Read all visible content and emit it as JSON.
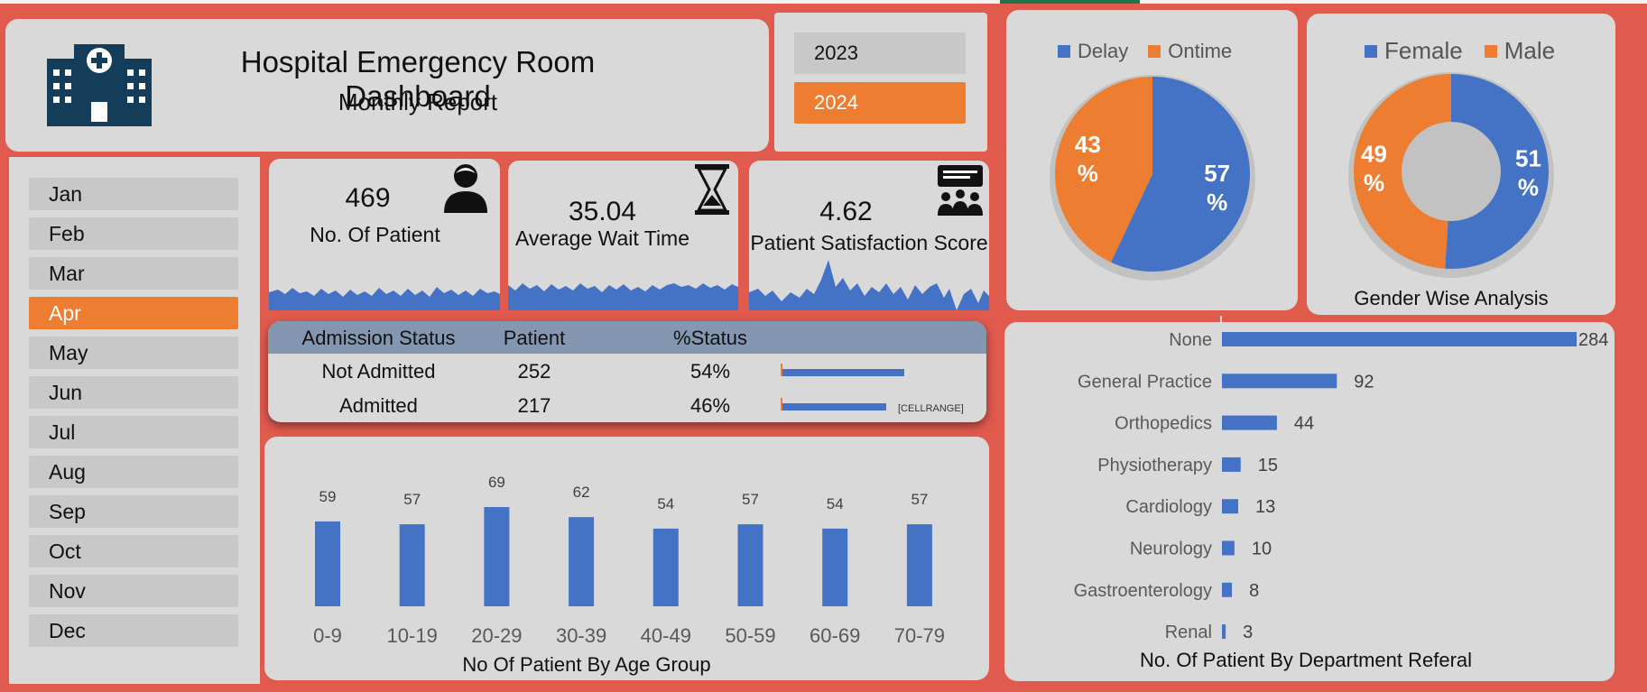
{
  "header": {
    "title": "Hospital Emergency Room Dashboard",
    "subtitle": "Monthly Report"
  },
  "years": [
    {
      "label": "2023",
      "selected": false
    },
    {
      "label": "2024",
      "selected": true
    }
  ],
  "months": [
    {
      "label": "Jan",
      "selected": false
    },
    {
      "label": "Feb",
      "selected": false
    },
    {
      "label": "Mar",
      "selected": false
    },
    {
      "label": "Apr",
      "selected": true
    },
    {
      "label": "May",
      "selected": false
    },
    {
      "label": "Jun",
      "selected": false
    },
    {
      "label": "Jul",
      "selected": false
    },
    {
      "label": "Aug",
      "selected": false
    },
    {
      "label": "Sep",
      "selected": false
    },
    {
      "label": "Oct",
      "selected": false
    },
    {
      "label": "Nov",
      "selected": false
    },
    {
      "label": "Dec",
      "selected": false
    }
  ],
  "kpis": [
    {
      "value": "469",
      "label": "No. Of Patient",
      "icon": "patient-icon"
    },
    {
      "value": "35.04",
      "label": "Average Wait Time",
      "icon": "hourglass-icon"
    },
    {
      "value": "4.62",
      "label": "Patient Satisfaction Score",
      "icon": "feedback-group-icon"
    }
  ],
  "admission": {
    "headers": [
      "Admission Status",
      "Patient",
      "%Status"
    ],
    "rows": [
      {
        "status": "Not Admitted",
        "patient": "252",
        "pct": "54%",
        "fraction": 0.54
      },
      {
        "status": "Admitted",
        "patient": "217",
        "pct": "46%",
        "fraction": 0.46
      }
    ],
    "cellrange_label": "[CELLRANGE]"
  },
  "colors": {
    "accent": "#ED7D31",
    "blue": "#4472C4",
    "panel": "#D9D9D9",
    "background": "#E15A4E",
    "table_header": "#8497B0"
  },
  "chart_data": [
    {
      "type": "pie",
      "title": "",
      "legend": [
        "Delay",
        "Ontime"
      ],
      "values": [
        57,
        43
      ],
      "labels": [
        "57\n%",
        "43\n%"
      ],
      "colors": [
        "#4472C4",
        "#ED7D31"
      ]
    },
    {
      "type": "donut",
      "title": "Gender Wise Analysis",
      "legend": [
        "Female",
        "Male"
      ],
      "values": [
        51,
        49
      ],
      "labels": [
        "51\n%",
        "49\n%"
      ],
      "colors": [
        "#4472C4",
        "#ED7D31"
      ]
    },
    {
      "type": "bar",
      "title": "No Of Patient By Age Group",
      "categories": [
        "0-9",
        "10-19",
        "20-29",
        "30-39",
        "40-49",
        "50-59",
        "60-69",
        "70-79"
      ],
      "values": [
        59,
        57,
        69,
        62,
        54,
        57,
        54,
        57
      ],
      "ylim": [
        0,
        75
      ]
    },
    {
      "type": "bar",
      "orientation": "horizontal",
      "title": "No. Of Patient By Department Referal",
      "categories": [
        "None",
        "General Practice",
        "Orthopedics",
        "Physiotherapy",
        "Cardiology",
        "Neurology",
        "Gastroenterology",
        "Renal"
      ],
      "values": [
        284,
        92,
        44,
        15,
        13,
        10,
        8,
        3
      ],
      "xlim": [
        0,
        284
      ]
    }
  ]
}
